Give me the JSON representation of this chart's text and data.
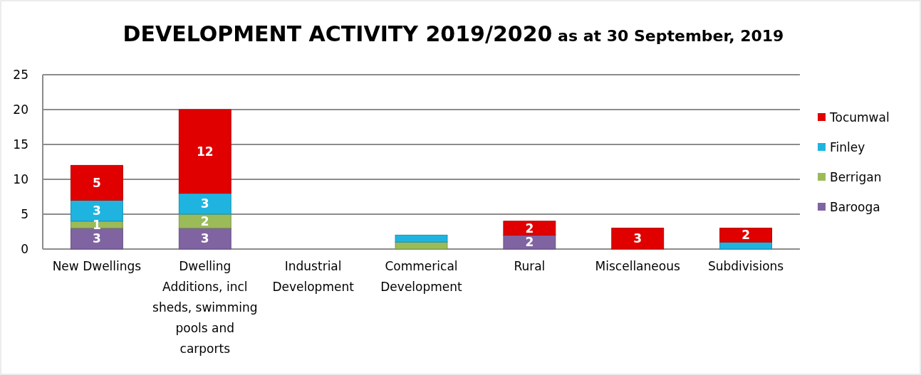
{
  "chart_data": {
    "type": "bar",
    "stacked": true,
    "title": "DEVELOPMENT ACTIVITY 2019/2020",
    "subtitle": "as at 30 September, 2019",
    "categories": [
      "New Dwellings",
      "Dwelling Additions, incl sheds, swimming pools and carports",
      "Industrial Development",
      "Commerical Development",
      "Rural",
      "Miscellaneous",
      "Subdivisions"
    ],
    "series": [
      {
        "name": "Barooga",
        "color": "#8064a2",
        "values": [
          3,
          3,
          0,
          0,
          2,
          0,
          0
        ],
        "value_labels": [
          "3",
          "3",
          null,
          null,
          "2",
          null,
          null
        ]
      },
      {
        "name": "Berrigan",
        "color": "#9bbb59",
        "values": [
          1,
          2,
          0,
          1,
          0,
          0,
          0
        ],
        "value_labels": [
          "1",
          "2",
          null,
          null,
          null,
          null,
          null
        ]
      },
      {
        "name": "Finley",
        "color": "#1fb4e0",
        "values": [
          3,
          3,
          0,
          1,
          0,
          0,
          1
        ],
        "value_labels": [
          "3",
          "3",
          null,
          null,
          null,
          null,
          null
        ]
      },
      {
        "name": "Tocumwal",
        "color": "#e00000",
        "values": [
          5,
          12,
          0,
          0,
          2,
          3,
          2
        ],
        "value_labels": [
          "5",
          "12",
          null,
          null,
          "2",
          "3",
          "2"
        ]
      }
    ],
    "ylim": [
      0,
      25
    ],
    "yticks": [
      0,
      5,
      10,
      15,
      20,
      25
    ],
    "grid": "y",
    "legend": "right"
  }
}
